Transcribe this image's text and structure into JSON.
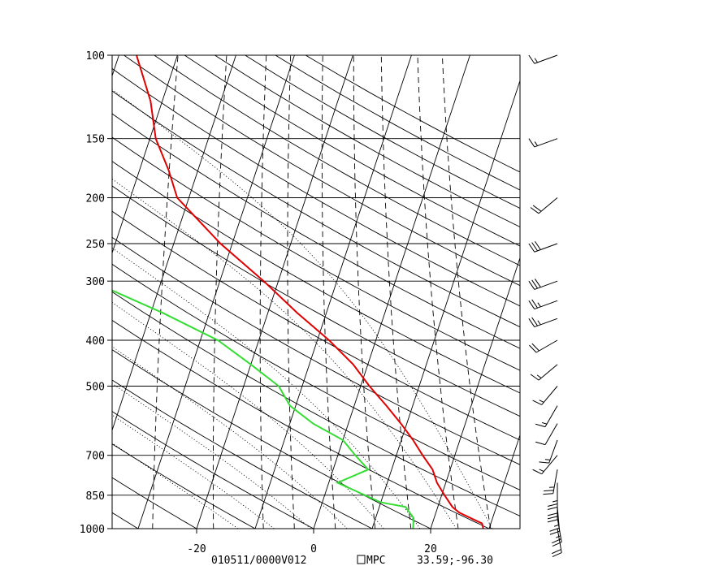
{
  "chart_data": {
    "type": "line",
    "title": "",
    "xlabel": "",
    "ylabel": "",
    "x_axis": {
      "ticks": [
        -20,
        0,
        20
      ],
      "tick_labels": [
        "-20",
        "0",
        "20"
      ],
      "range_at_bottom": [
        -34,
        35
      ]
    },
    "y_axis": {
      "scale": "log",
      "ticks": [
        100,
        150,
        200,
        250,
        300,
        400,
        500,
        700,
        850,
        1000
      ],
      "tick_labels": [
        "100",
        "150",
        "200",
        "250",
        "300",
        "400",
        "500",
        "700",
        "850",
        "1000"
      ],
      "range": [
        100,
        1000
      ]
    },
    "grid": true,
    "series": [
      {
        "key": "temperature",
        "color": "#e00000",
        "points": [
          {
            "p": 1000,
            "t": 29
          },
          {
            "p": 975,
            "t": 28.5
          },
          {
            "p": 925,
            "t": 24
          },
          {
            "p": 900,
            "t": 22.5
          },
          {
            "p": 850,
            "t": 20.5
          },
          {
            "p": 800,
            "t": 18.5
          },
          {
            "p": 750,
            "t": 17
          },
          {
            "p": 700,
            "t": 14.5
          },
          {
            "p": 650,
            "t": 12
          },
          {
            "p": 600,
            "t": 9
          },
          {
            "p": 550,
            "t": 5.5
          },
          {
            "p": 500,
            "t": 1.5
          },
          {
            "p": 450,
            "t": -2.5
          },
          {
            "p": 400,
            "t": -8
          },
          {
            "p": 350,
            "t": -15
          },
          {
            "p": 300,
            "t": -22.5
          },
          {
            "p": 250,
            "t": -32
          },
          {
            "p": 200,
            "t": -42
          },
          {
            "p": 175,
            "t": -45
          },
          {
            "p": 150,
            "t": -49
          },
          {
            "p": 125,
            "t": -52
          },
          {
            "p": 100,
            "t": -57
          }
        ]
      },
      {
        "key": "dewpoint",
        "color": "#33dd33",
        "points": [
          {
            "p": 1000,
            "t": 17
          },
          {
            "p": 950,
            "t": 16.5
          },
          {
            "p": 900,
            "t": 14.5
          },
          {
            "p": 880,
            "t": 10
          },
          {
            "p": 800,
            "t": 1.5
          },
          {
            "p": 750,
            "t": 6
          },
          {
            "p": 700,
            "t": 3
          },
          {
            "p": 650,
            "t": 0
          },
          {
            "p": 600,
            "t": -6
          },
          {
            "p": 550,
            "t": -11
          },
          {
            "p": 500,
            "t": -14
          },
          {
            "p": 450,
            "t": -20
          },
          {
            "p": 400,
            "t": -27
          },
          {
            "p": 350,
            "t": -38
          },
          {
            "p": 300,
            "t": -52
          },
          {
            "p": 250,
            "t": -62
          },
          {
            "p": 200,
            "t": -66
          },
          {
            "p": 150,
            "t": -75
          },
          {
            "p": 125,
            "t": -80
          },
          {
            "p": 100,
            "t": -88
          }
        ]
      }
    ],
    "wind_barbs": [
      {
        "p": 100,
        "dir": 250,
        "kt": 15
      },
      {
        "p": 150,
        "dir": 250,
        "kt": 15
      },
      {
        "p": 200,
        "dir": 230,
        "kt": 20
      },
      {
        "p": 250,
        "dir": 250,
        "kt": 30
      },
      {
        "p": 300,
        "dir": 250,
        "kt": 30
      },
      {
        "p": 330,
        "dir": 250,
        "kt": 25
      },
      {
        "p": 360,
        "dir": 250,
        "kt": 25
      },
      {
        "p": 400,
        "dir": 240,
        "kt": 20
      },
      {
        "p": 450,
        "dir": 230,
        "kt": 15
      },
      {
        "p": 500,
        "dir": 220,
        "kt": 15
      },
      {
        "p": 550,
        "dir": 210,
        "kt": 15
      },
      {
        "p": 600,
        "dir": 210,
        "kt": 10
      },
      {
        "p": 650,
        "dir": 200,
        "kt": 15
      },
      {
        "p": 700,
        "dir": 220,
        "kt": 15
      },
      {
        "p": 750,
        "dir": 190,
        "kt": 25
      },
      {
        "p": 800,
        "dir": 180,
        "kt": 25
      },
      {
        "p": 850,
        "dir": 180,
        "kt": 30
      },
      {
        "p": 900,
        "dir": 175,
        "kt": 25
      },
      {
        "p": 950,
        "dir": 170,
        "kt": 25
      },
      {
        "p": 1000,
        "dir": 170,
        "kt": 20
      }
    ]
  },
  "footer": {
    "run_label": "010511/0000V012",
    "source_label": "MPC",
    "location_label": "33.59;-96.30"
  },
  "colors": {
    "temperature": "#e00000",
    "dewpoint": "#33dd33",
    "grid": "#000000"
  }
}
